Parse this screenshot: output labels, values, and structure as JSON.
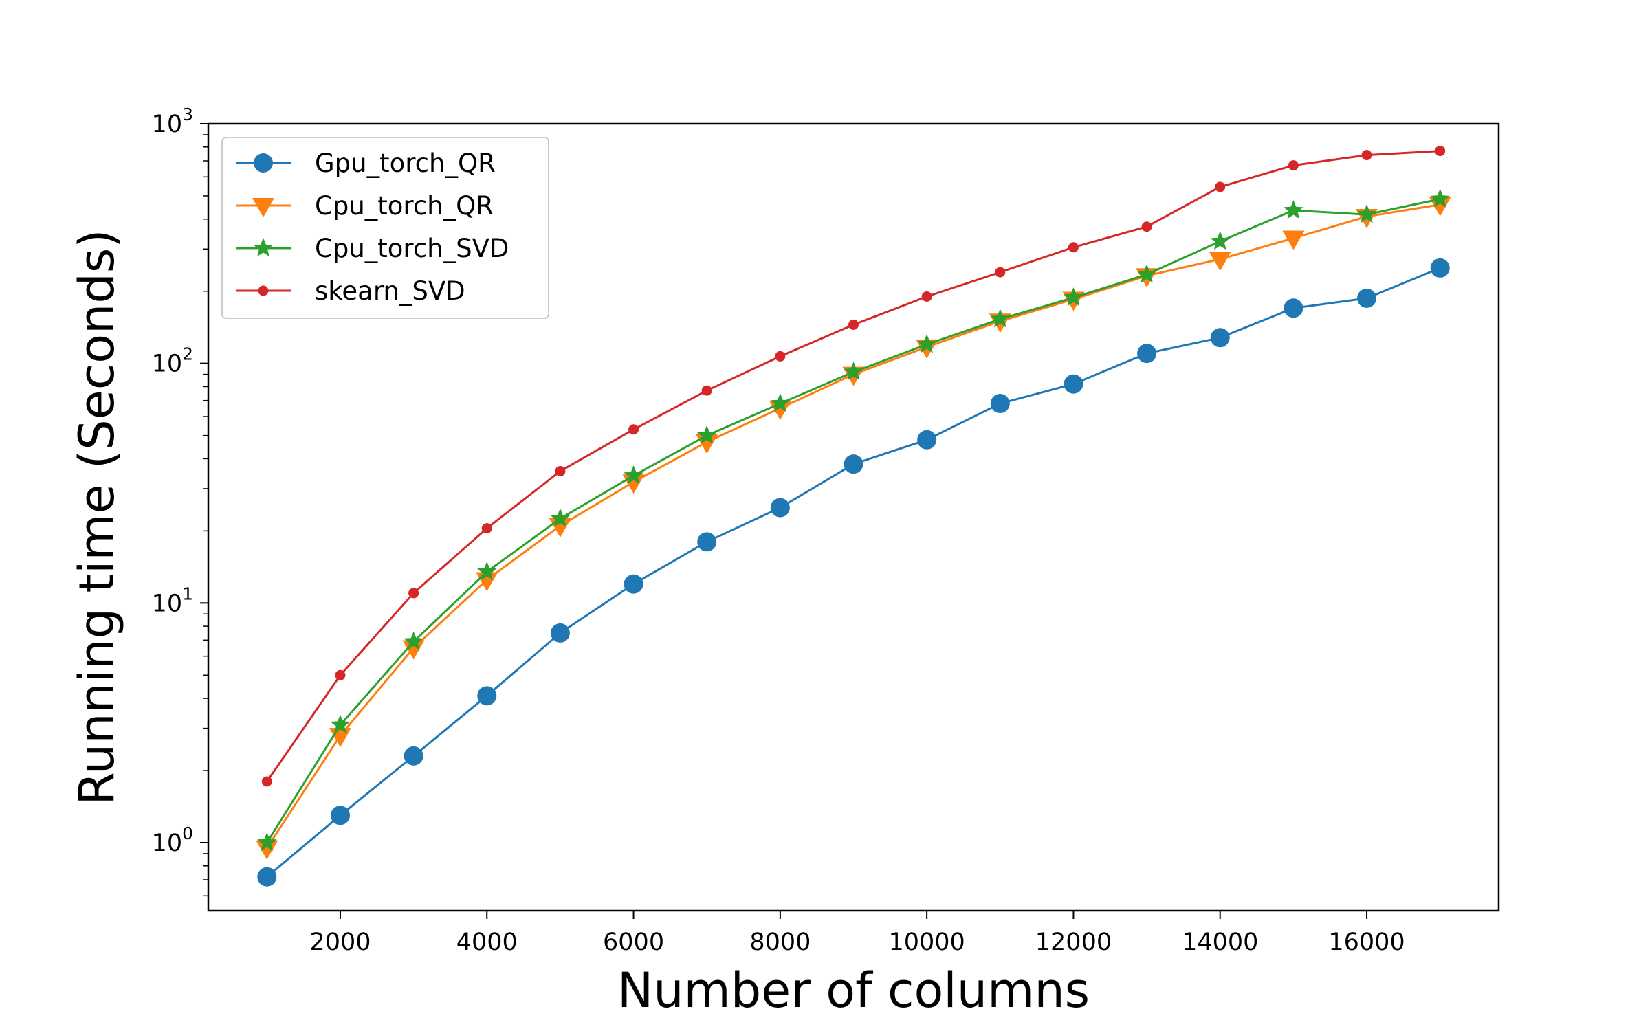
{
  "chart_data": {
    "type": "line",
    "title": "",
    "xlabel": "Number of columns",
    "ylabel": "Running time (Seconds)",
    "yscale": "log",
    "xlim": [
      200,
      17800
    ],
    "ylim": [
      0.52,
      1000
    ],
    "grid": false,
    "legend_position": "top-left",
    "x": [
      1000,
      2000,
      3000,
      4000,
      5000,
      6000,
      7000,
      8000,
      9000,
      10000,
      11000,
      12000,
      13000,
      14000,
      15000,
      16000,
      17000
    ],
    "xticks": [
      2000,
      4000,
      6000,
      8000,
      10000,
      12000,
      14000,
      16000
    ],
    "xtick_labels": [
      "2000",
      "4000",
      "6000",
      "8000",
      "10000",
      "12000",
      "14000",
      "16000"
    ],
    "yticks": [
      1,
      10,
      100,
      1000
    ],
    "ytick_labels": [
      {
        "base": "10",
        "exp": "0"
      },
      {
        "base": "10",
        "exp": "1"
      },
      {
        "base": "10",
        "exp": "2"
      },
      {
        "base": "10",
        "exp": "3"
      }
    ],
    "series": [
      {
        "name": "Gpu_torch_QR",
        "color": "#1f77b4",
        "marker": "circle",
        "values": [
          0.72,
          1.3,
          2.3,
          4.1,
          7.5,
          12,
          18,
          25,
          38,
          48,
          68,
          82,
          110,
          128,
          170,
          187,
          250
        ]
      },
      {
        "name": "Cpu_torch_QR",
        "color": "#ff7f0e",
        "marker": "triangle-down",
        "values": [
          0.95,
          2.8,
          6.5,
          12.5,
          21,
          32,
          47,
          65,
          90,
          117,
          150,
          185,
          232,
          272,
          333,
          410,
          460
        ]
      },
      {
        "name": "Cpu_torch_SVD",
        "color": "#2ca02c",
        "marker": "star",
        "values": [
          1.0,
          3.1,
          6.9,
          13.5,
          22.5,
          34,
          50,
          68,
          92,
          120,
          153,
          188,
          235,
          323,
          435,
          418,
          485
        ]
      },
      {
        "name": "skearn_SVD",
        "color": "#d62728",
        "marker": "small-circle",
        "values": [
          1.8,
          5.0,
          11,
          20.5,
          35.5,
          53,
          77,
          107,
          145,
          190,
          240,
          305,
          372,
          545,
          670,
          740,
          770
        ]
      }
    ]
  }
}
